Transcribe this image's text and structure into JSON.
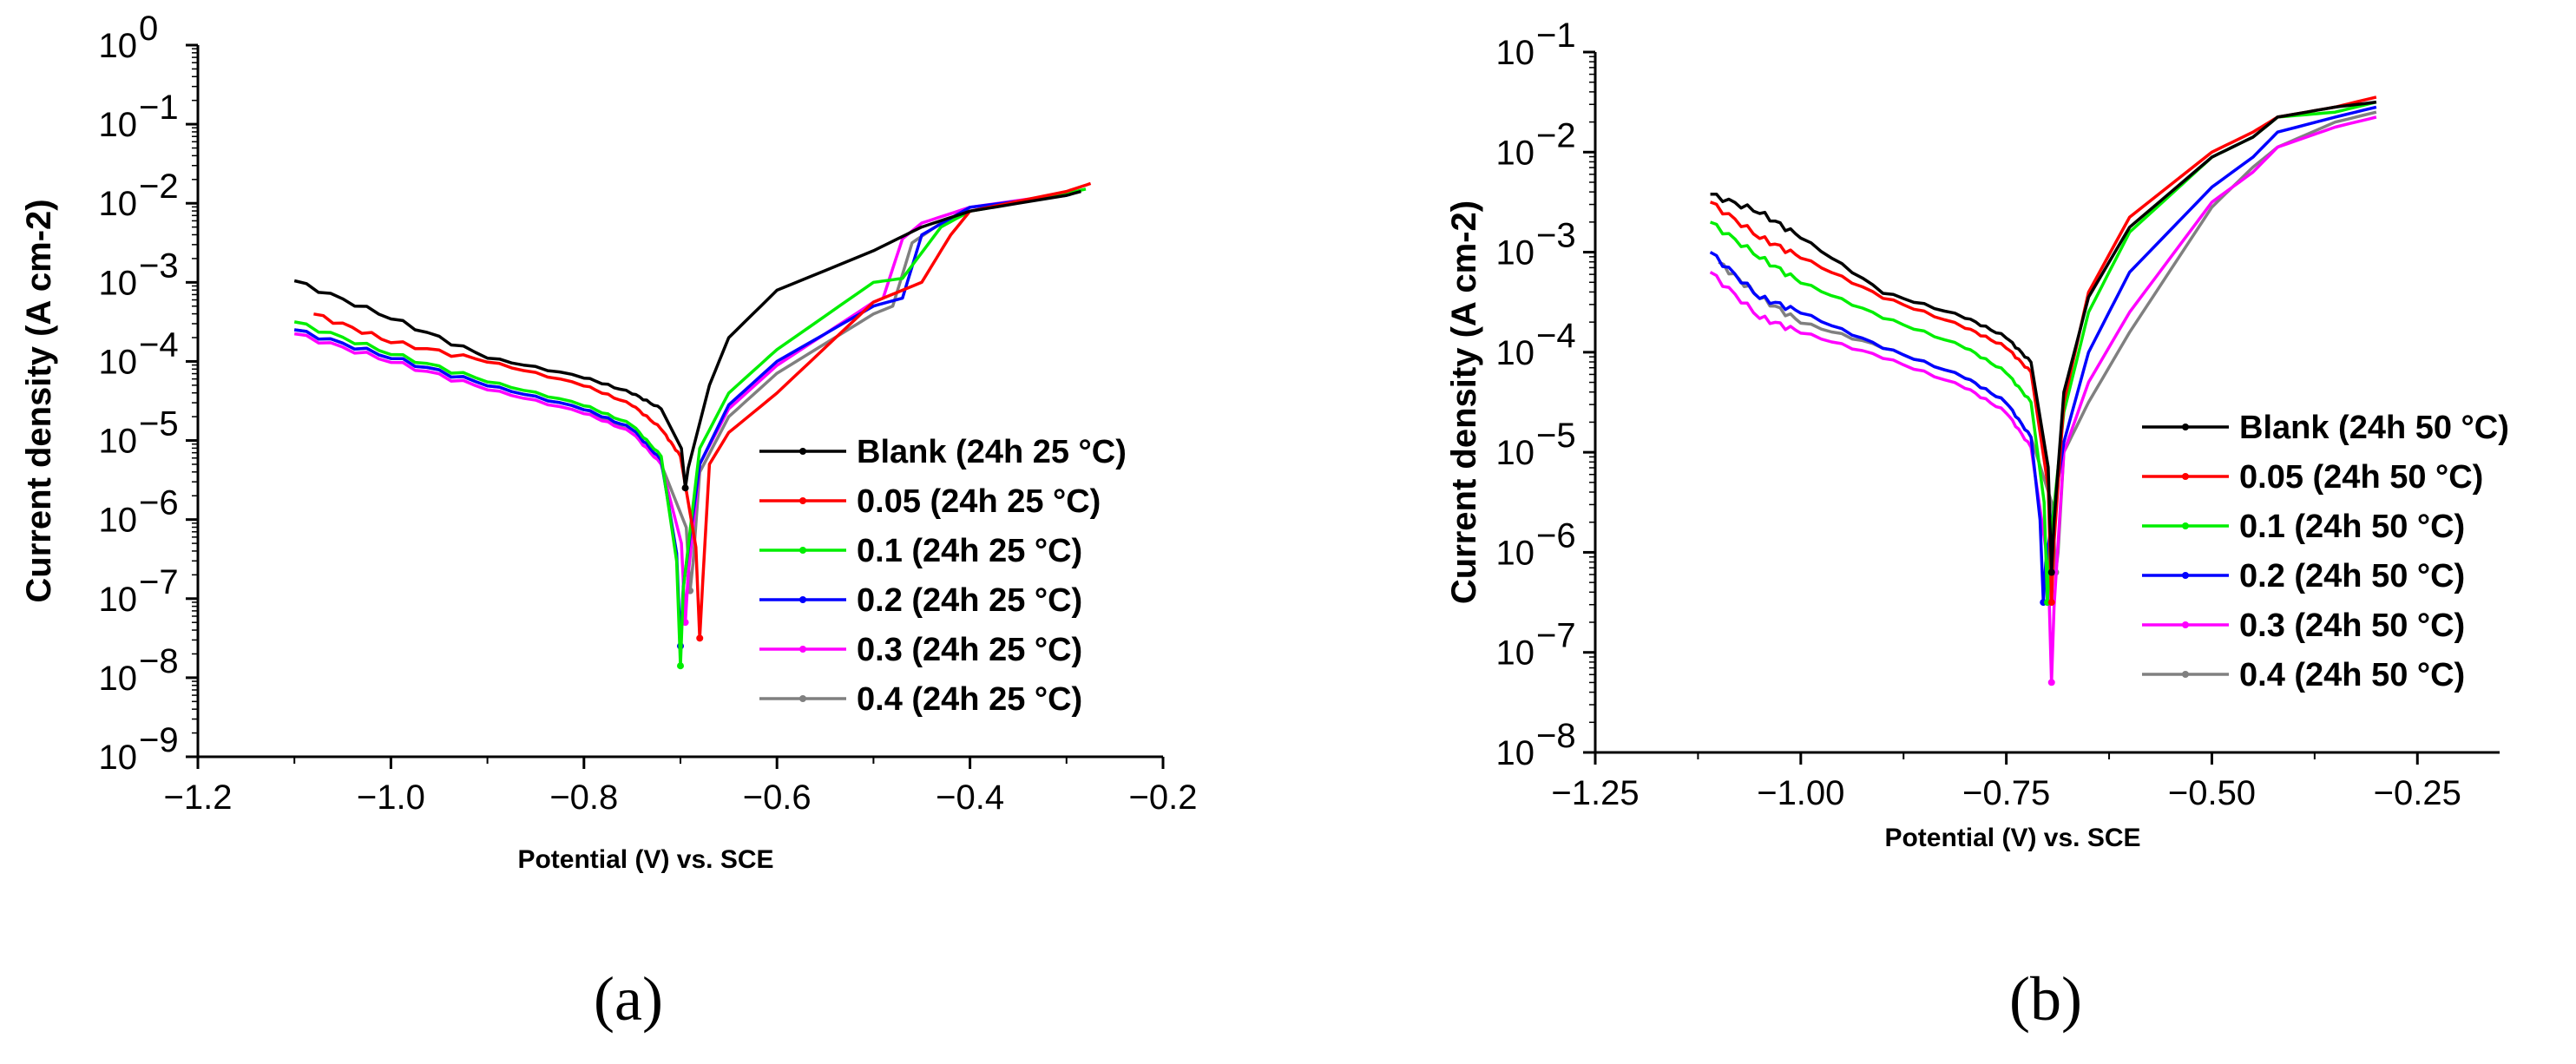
{
  "chart_data": [
    {
      "type": "line",
      "caption": "(a)",
      "xlabel": "Potential (V) vs. SCE",
      "ylabel": "Current density (A cm-2)",
      "xlim": [
        -1.2,
        -0.2
      ],
      "ylim_log10": [
        -9,
        0
      ],
      "yscale": "log",
      "xticks": [
        -1.2,
        -1.0,
        -0.8,
        -0.6,
        -0.4,
        -0.2
      ],
      "xtick_labels": [
        "−1.2",
        "−1.0",
        "−0.8",
        "−0.6",
        "−0.4",
        "−0.2"
      ],
      "yticks_exp": [
        0,
        -1,
        -2,
        -3,
        -4,
        -5,
        -6,
        -7,
        -8,
        -9
      ],
      "legend_location": "center-right",
      "series": [
        {
          "name": "Blank (24h 25 °C)",
          "color": "#000000",
          "ecorr": -0.695,
          "min_exp": -5.6,
          "cathodic": [
            [
              -1.1,
              -2.98
            ],
            [
              -1.0,
              -3.45
            ],
            [
              -0.9,
              -3.95
            ],
            [
              -0.8,
              -4.2
            ],
            [
              -0.75,
              -4.4
            ],
            [
              -0.72,
              -4.6
            ]
          ],
          "anodic": [
            [
              -0.67,
              -4.3
            ],
            [
              -0.65,
              -3.7
            ],
            [
              -0.6,
              -3.1
            ],
            [
              -0.5,
              -2.6
            ],
            [
              -0.45,
              -2.3
            ],
            [
              -0.4,
              -2.1
            ],
            [
              -0.3,
              -1.9
            ],
            [
              -0.285,
              -1.85
            ]
          ]
        },
        {
          "name": "0.05 (24h 25 °C)",
          "color": "#ff0000",
          "ecorr": -0.68,
          "min_exp": -7.5,
          "cathodic": [
            [
              -1.08,
              -3.4
            ],
            [
              -1.0,
              -3.75
            ],
            [
              -0.9,
              -4.0
            ],
            [
              -0.8,
              -4.3
            ],
            [
              -0.75,
              -4.55
            ],
            [
              -0.72,
              -4.85
            ],
            [
              -0.7,
              -5.2
            ]
          ],
          "anodic": [
            [
              -0.67,
              -5.3
            ],
            [
              -0.65,
              -4.9
            ],
            [
              -0.6,
              -4.4
            ],
            [
              -0.5,
              -3.25
            ],
            [
              -0.45,
              -3.0
            ],
            [
              -0.42,
              -2.4
            ],
            [
              -0.4,
              -2.1
            ],
            [
              -0.3,
              -1.85
            ],
            [
              -0.275,
              -1.75
            ]
          ]
        },
        {
          "name": "0.1 (24h 25 °C)",
          "color": "#00ee00",
          "ecorr": -0.7,
          "min_exp": -7.85,
          "cathodic": [
            [
              -1.1,
              -3.5
            ],
            [
              -1.0,
              -3.9
            ],
            [
              -0.9,
              -4.25
            ],
            [
              -0.8,
              -4.55
            ],
            [
              -0.75,
              -4.8
            ],
            [
              -0.72,
              -5.2
            ]
          ],
          "anodic": [
            [
              -0.68,
              -5.1
            ],
            [
              -0.65,
              -4.4
            ],
            [
              -0.6,
              -3.85
            ],
            [
              -0.5,
              -3.0
            ],
            [
              -0.47,
              -2.95
            ],
            [
              -0.43,
              -2.3
            ],
            [
              -0.4,
              -2.1
            ],
            [
              -0.3,
              -1.88
            ],
            [
              -0.28,
              -1.82
            ]
          ]
        },
        {
          "name": "0.2 (24h 25 °C)",
          "color": "#0000ff",
          "ecorr": -0.7,
          "min_exp": -7.6,
          "cathodic": [
            [
              -1.1,
              -3.6
            ],
            [
              -1.0,
              -3.95
            ],
            [
              -0.9,
              -4.3
            ],
            [
              -0.8,
              -4.6
            ],
            [
              -0.75,
              -4.85
            ],
            [
              -0.72,
              -5.25
            ]
          ],
          "anodic": [
            [
              -0.68,
              -5.3
            ],
            [
              -0.65,
              -4.55
            ],
            [
              -0.6,
              -4.0
            ],
            [
              -0.5,
              -3.3
            ],
            [
              -0.47,
              -3.2
            ],
            [
              -0.45,
              -2.4
            ],
            [
              -0.4,
              -2.05
            ],
            [
              -0.3,
              -1.9
            ],
            [
              -0.29,
              -1.85
            ]
          ]
        },
        {
          "name": "0.3 (24h 25 °C)",
          "color": "#ff00ff",
          "ecorr": -0.695,
          "min_exp": -7.3,
          "cathodic": [
            [
              -1.1,
              -3.65
            ],
            [
              -1.0,
              -4.0
            ],
            [
              -0.9,
              -4.35
            ],
            [
              -0.8,
              -4.65
            ],
            [
              -0.75,
              -4.9
            ],
            [
              -0.72,
              -5.3
            ]
          ],
          "anodic": [
            [
              -0.68,
              -5.3
            ],
            [
              -0.65,
              -4.6
            ],
            [
              -0.6,
              -4.05
            ],
            [
              -0.5,
              -3.25
            ],
            [
              -0.49,
              -3.2
            ],
            [
              -0.47,
              -2.45
            ],
            [
              -0.45,
              -2.25
            ],
            [
              -0.4,
              -2.05
            ],
            [
              -0.3,
              -1.88
            ],
            [
              -0.29,
              -1.85
            ]
          ]
        },
        {
          "name": "0.4 (24h 25 °C)",
          "color": "#808080",
          "ecorr": -0.69,
          "min_exp": -6.9,
          "cathodic": [
            [
              -1.1,
              -3.6
            ],
            [
              -1.0,
              -3.95
            ],
            [
              -0.9,
              -4.3
            ],
            [
              -0.8,
              -4.6
            ],
            [
              -0.75,
              -4.9
            ],
            [
              -0.72,
              -5.3
            ]
          ],
          "anodic": [
            [
              -0.68,
              -5.4
            ],
            [
              -0.65,
              -4.7
            ],
            [
              -0.6,
              -4.15
            ],
            [
              -0.5,
              -3.4
            ],
            [
              -0.48,
              -3.3
            ],
            [
              -0.46,
              -2.5
            ],
            [
              -0.43,
              -2.25
            ],
            [
              -0.4,
              -2.1
            ],
            [
              -0.3,
              -1.88
            ],
            [
              -0.29,
              -1.85
            ]
          ]
        }
      ]
    },
    {
      "type": "line",
      "caption": "(b)",
      "xlabel": "Potential (V) vs. SCE",
      "ylabel": "Current density (A cm-2)",
      "xlim": [
        -1.25,
        -0.15
      ],
      "ylim_log10": [
        -8,
        -1
      ],
      "yscale": "log",
      "xticks": [
        -1.25,
        -1.0,
        -0.75,
        -0.5,
        -0.25
      ],
      "xtick_labels": [
        "−1.25",
        "−1.00",
        "−0.75",
        "−0.50",
        "−0.25"
      ],
      "yticks_exp": [
        -1,
        -2,
        -3,
        -4,
        -5,
        -6,
        -7,
        -8
      ],
      "legend_location": "center-right",
      "series": [
        {
          "name": "Blank (24h 50 °C)",
          "color": "#000000",
          "ecorr": -0.695,
          "min_exp": -6.2,
          "cathodic": [
            [
              -1.11,
              -2.42
            ],
            [
              -1.05,
              -2.6
            ],
            [
              -1.0,
              -2.85
            ],
            [
              -0.9,
              -3.4
            ],
            [
              -0.8,
              -3.65
            ],
            [
              -0.75,
              -3.85
            ],
            [
              -0.72,
              -4.1
            ]
          ],
          "anodic": [
            [
              -0.68,
              -4.4
            ],
            [
              -0.65,
              -3.45
            ],
            [
              -0.6,
              -2.75
            ],
            [
              -0.5,
              -2.05
            ],
            [
              -0.45,
              -1.85
            ],
            [
              -0.42,
              -1.65
            ],
            [
              -0.35,
              -1.55
            ],
            [
              -0.3,
              -1.5
            ]
          ]
        },
        {
          "name": "0.05 (24h 50 °C)",
          "color": "#ff0000",
          "ecorr": -0.695,
          "min_exp": -6.5,
          "cathodic": [
            [
              -1.11,
              -2.5
            ],
            [
              -1.05,
              -2.85
            ],
            [
              -1.0,
              -3.05
            ],
            [
              -0.9,
              -3.45
            ],
            [
              -0.8,
              -3.75
            ],
            [
              -0.75,
              -3.95
            ],
            [
              -0.72,
              -4.2
            ]
          ],
          "anodic": [
            [
              -0.68,
              -4.5
            ],
            [
              -0.65,
              -3.4
            ],
            [
              -0.6,
              -2.65
            ],
            [
              -0.5,
              -2.0
            ],
            [
              -0.45,
              -1.8
            ],
            [
              -0.42,
              -1.65
            ],
            [
              -0.35,
              -1.55
            ],
            [
              -0.3,
              -1.45
            ]
          ]
        },
        {
          "name": "0.1 (24h 50 °C)",
          "color": "#00ee00",
          "ecorr": -0.7,
          "min_exp": -6.5,
          "cathodic": [
            [
              -1.11,
              -2.7
            ],
            [
              -1.05,
              -3.05
            ],
            [
              -1.0,
              -3.3
            ],
            [
              -0.9,
              -3.65
            ],
            [
              -0.8,
              -3.95
            ],
            [
              -0.75,
              -4.2
            ],
            [
              -0.72,
              -4.5
            ]
          ],
          "anodic": [
            [
              -0.68,
              -4.6
            ],
            [
              -0.65,
              -3.6
            ],
            [
              -0.6,
              -2.8
            ],
            [
              -0.5,
              -2.05
            ],
            [
              -0.45,
              -1.85
            ],
            [
              -0.42,
              -1.65
            ],
            [
              -0.35,
              -1.6
            ],
            [
              -0.3,
              -1.5
            ]
          ]
        },
        {
          "name": "0.2 (24h 50 °C)",
          "color": "#0000ff",
          "ecorr": -0.705,
          "min_exp": -6.5,
          "cathodic": [
            [
              -1.11,
              -3.0
            ],
            [
              -1.05,
              -3.45
            ],
            [
              -1.0,
              -3.6
            ],
            [
              -0.9,
              -3.95
            ],
            [
              -0.8,
              -4.25
            ],
            [
              -0.75,
              -4.5
            ],
            [
              -0.72,
              -4.85
            ]
          ],
          "anodic": [
            [
              -0.68,
              -4.9
            ],
            [
              -0.65,
              -4.0
            ],
            [
              -0.6,
              -3.2
            ],
            [
              -0.5,
              -2.35
            ],
            [
              -0.45,
              -2.05
            ],
            [
              -0.42,
              -1.8
            ],
            [
              -0.35,
              -1.65
            ],
            [
              -0.3,
              -1.55
            ]
          ]
        },
        {
          "name": "0.3 (24h 50 °C)",
          "color": "#ff00ff",
          "ecorr": -0.695,
          "min_exp": -7.3,
          "cathodic": [
            [
              -1.11,
              -3.2
            ],
            [
              -1.05,
              -3.65
            ],
            [
              -1.0,
              -3.8
            ],
            [
              -0.9,
              -4.05
            ],
            [
              -0.8,
              -4.35
            ],
            [
              -0.75,
              -4.6
            ],
            [
              -0.72,
              -4.95
            ]
          ],
          "anodic": [
            [
              -0.68,
              -5.0
            ],
            [
              -0.65,
              -4.3
            ],
            [
              -0.6,
              -3.6
            ],
            [
              -0.5,
              -2.5
            ],
            [
              -0.45,
              -2.2
            ],
            [
              -0.42,
              -1.95
            ],
            [
              -0.35,
              -1.75
            ],
            [
              -0.3,
              -1.65
            ]
          ]
        },
        {
          "name": "0.4 (24h 50 °C)",
          "color": "#808080",
          "ecorr": -0.69,
          "min_exp": -6.2,
          "cathodic": [
            [
              -1.1,
              -3.1
            ],
            [
              -1.05,
              -3.45
            ],
            [
              -1.0,
              -3.7
            ],
            [
              -0.9,
              -3.95
            ],
            [
              -0.8,
              -4.25
            ],
            [
              -0.75,
              -4.5
            ],
            [
              -0.72,
              -4.85
            ]
          ],
          "anodic": [
            [
              -0.68,
              -5.0
            ],
            [
              -0.65,
              -4.5
            ],
            [
              -0.6,
              -3.8
            ],
            [
              -0.5,
              -2.55
            ],
            [
              -0.45,
              -2.15
            ],
            [
              -0.42,
              -1.95
            ],
            [
              -0.35,
              -1.7
            ],
            [
              -0.3,
              -1.6
            ]
          ]
        }
      ]
    }
  ]
}
